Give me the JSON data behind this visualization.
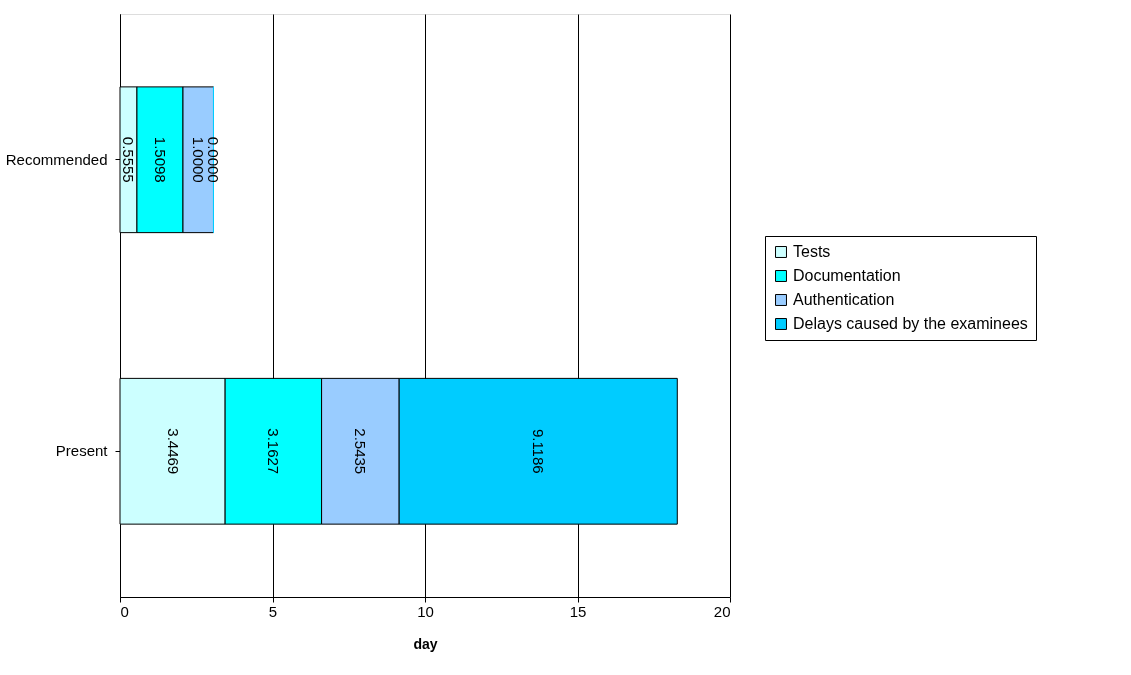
{
  "chart_data": {
    "type": "bar",
    "orientation": "horizontal",
    "stacked": true,
    "categories": [
      "Recommended",
      "Present"
    ],
    "xlabel": "day",
    "xlim": [
      0,
      20
    ],
    "xticks": [
      0,
      5,
      10,
      15,
      20
    ],
    "grid": "x",
    "legend": "right",
    "series": [
      {
        "name": "Tests",
        "color": "#ccffff",
        "values": [
          0.5555,
          3.4469
        ],
        "value_labels": [
          "0.5555",
          "3.4469"
        ]
      },
      {
        "name": "Documentation",
        "color": "#00ffff",
        "values": [
          1.5098,
          3.1627
        ],
        "value_labels": [
          "1.5098",
          "3.1627"
        ]
      },
      {
        "name": "Authentication",
        "color": "#99ccff",
        "values": [
          1.0,
          2.5435
        ],
        "value_labels": [
          "1.0000",
          "2.5435"
        ]
      },
      {
        "name": "Delays caused by the examinees",
        "color": "#00ccff",
        "values": [
          0.0,
          9.1186
        ],
        "value_labels": [
          "0.0000",
          "9.1186"
        ]
      }
    ]
  }
}
